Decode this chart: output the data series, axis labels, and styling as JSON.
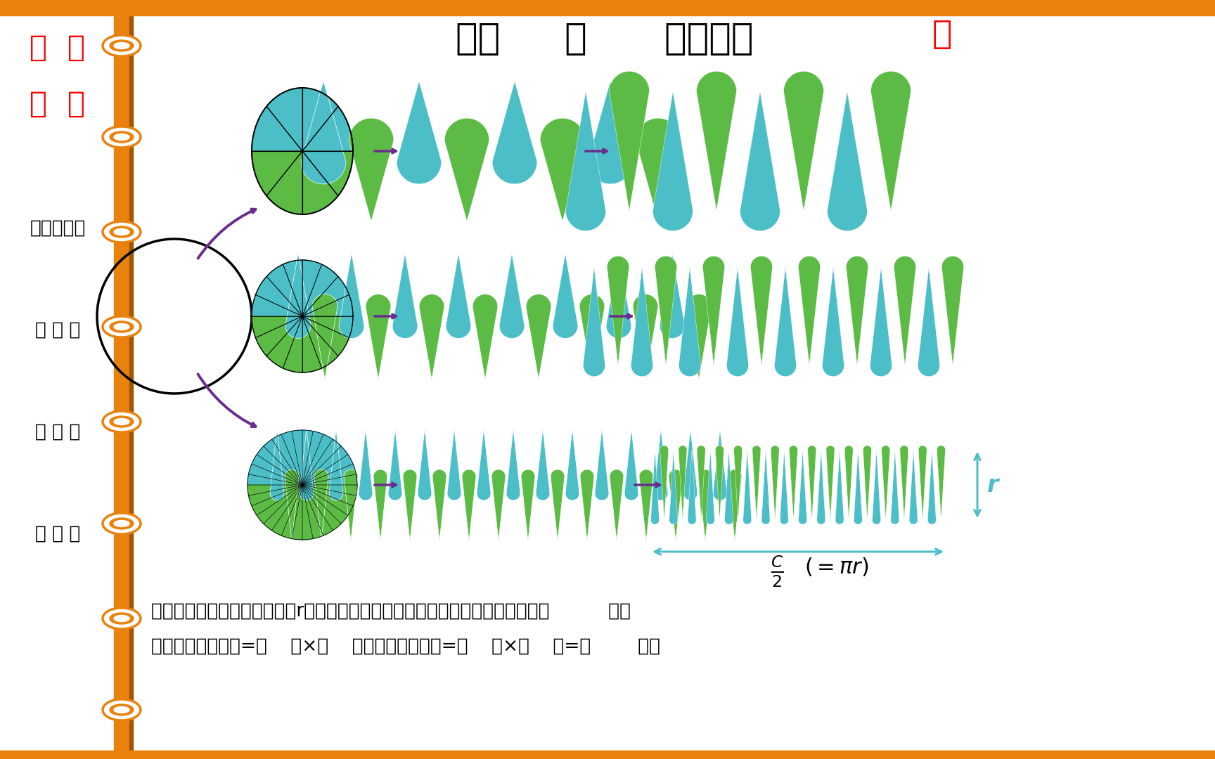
{
  "bg_color": "#ffffff",
  "orange_color": "#E8820C",
  "orange_dark": "#C06A00",
  "left_texts": [
    "苏  悄",
    "书  室",
    "迎点赞关注",
    "题 讲 解",
    "业 答 疑",
    "题 整 理"
  ],
  "title_black": "六上     圆      圆的面积",
  "title_red": "转",
  "cyan_color": "#4BBEC8",
  "green_color": "#5CBB45",
  "purple_color": "#6B2D8B",
  "bottom_text1": "从上图中可以看出圆的半径是r，长方形的长近似（圆周长的一半），宽近似于（          ）。",
  "bottom_text2": "因为长方形的面积=（    ）×（    ），所以圆的面积=（    ）×（    ）=（        ）。"
}
